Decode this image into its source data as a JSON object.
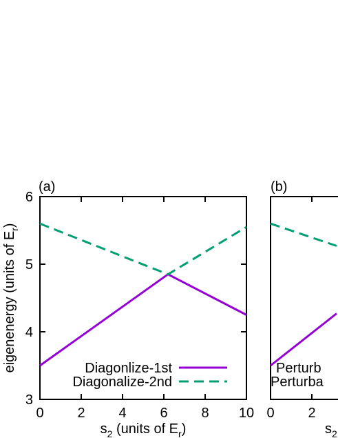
{
  "chart_data": [
    {
      "panel_label": "(a)",
      "type": "line",
      "xlabel_main": "s",
      "xlabel_sub": "2",
      "xlabel_mid": " (units of E",
      "xlabel_sub2": "r",
      "xlabel_end": ")",
      "ylabel_main": "eigenenergy (units of E",
      "ylabel_sub": "r",
      "ylabel_end": ")",
      "xlim": [
        0,
        10
      ],
      "ylim": [
        3,
        6
      ],
      "xticks": [
        0,
        2,
        4,
        6,
        8,
        10
      ],
      "yticks": [
        3,
        4,
        5,
        6
      ],
      "xtick_labels": [
        "0",
        "2",
        "4",
        "6",
        "8",
        "10"
      ],
      "ytick_labels": [
        "3",
        "4",
        "5",
        "6"
      ],
      "grid": false,
      "legend_placement": "bottom-right",
      "series": [
        {
          "name": "Diagonlize-1st",
          "color": "#9400d3",
          "dash": "solid",
          "x": [
            0,
            6.2,
            10
          ],
          "y": [
            3.5,
            4.85,
            4.25
          ]
        },
        {
          "name": "Diagonalize-2nd",
          "color": "#009e73",
          "dash": "dashed",
          "x": [
            0,
            6.2,
            10
          ],
          "y": [
            5.6,
            4.85,
            5.55
          ]
        }
      ]
    },
    {
      "panel_label": "(b)",
      "type": "line",
      "xlabel_main": "s",
      "xlabel_sub": "2",
      "xlim": [
        0,
        10
      ],
      "ylim": [
        3,
        6
      ],
      "xticks": [
        0,
        2
      ],
      "xtick_labels": [
        "0",
        "2"
      ],
      "grid": false,
      "legend_placement": "bottom-right",
      "series": [
        {
          "name": "Perturb",
          "color": "#9400d3",
          "dash": "solid",
          "x": [
            0,
            3.2
          ],
          "y": [
            3.5,
            4.27
          ]
        },
        {
          "name": "Perturba",
          "color": "#009e73",
          "dash": "dashed",
          "x": [
            0,
            3.2
          ],
          "y": [
            5.6,
            5.27
          ]
        }
      ]
    }
  ]
}
